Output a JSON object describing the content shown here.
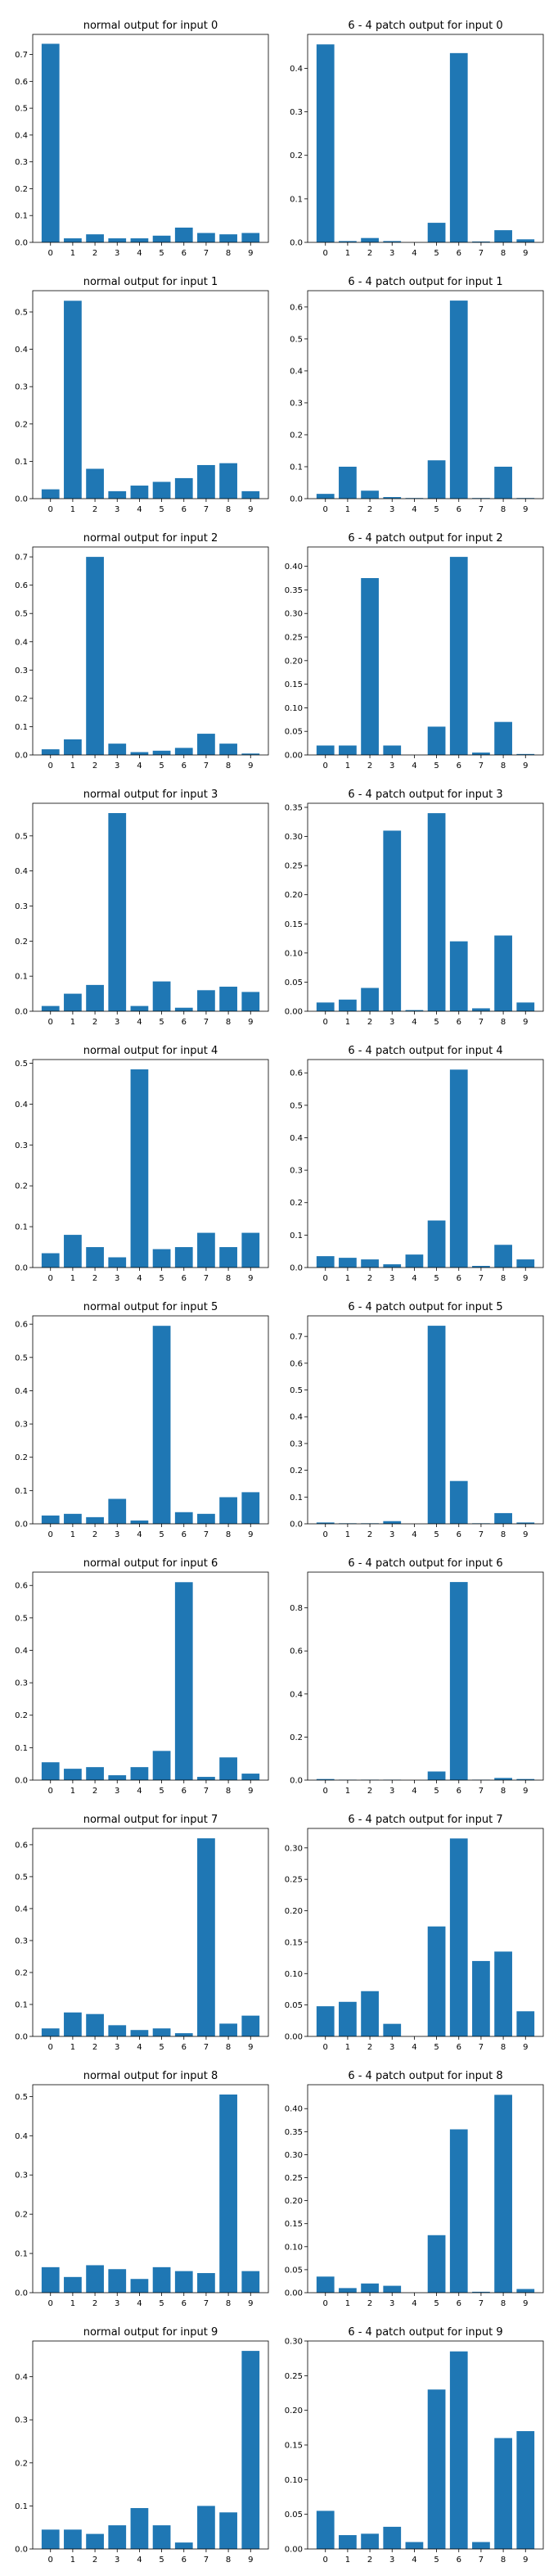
{
  "figure": {
    "bar_color": "#1f77b4",
    "layout": {
      "rows": 10,
      "cols": 2
    }
  },
  "chart_data": [
    {
      "type": "bar",
      "title": "normal output for input 0",
      "categories": [
        "0",
        "1",
        "2",
        "3",
        "4",
        "5",
        "6",
        "7",
        "8",
        "9"
      ],
      "values": [
        0.74,
        0.015,
        0.03,
        0.015,
        0.015,
        0.025,
        0.055,
        0.035,
        0.03,
        0.035
      ],
      "ylim": [
        0,
        0.775
      ],
      "yticks": [
        0.0,
        0.1,
        0.2,
        0.3,
        0.4,
        0.5,
        0.6,
        0.7
      ],
      "ytick_labels": [
        "0.0",
        "0.1",
        "0.2",
        "0.3",
        "0.4",
        "0.5",
        "0.6",
        "0.7"
      ]
    },
    {
      "type": "bar",
      "title": "6 - 4 patch output for input 0",
      "categories": [
        "0",
        "1",
        "2",
        "3",
        "4",
        "5",
        "6",
        "7",
        "8",
        "9"
      ],
      "values": [
        0.455,
        0.003,
        0.01,
        0.003,
        0.0,
        0.045,
        0.435,
        0.002,
        0.028,
        0.007
      ],
      "ylim": [
        0,
        0.478
      ],
      "yticks": [
        0.0,
        0.1,
        0.2,
        0.3,
        0.4
      ],
      "ytick_labels": [
        "0.0",
        "0.1",
        "0.2",
        "0.3",
        "0.4"
      ]
    },
    {
      "type": "bar",
      "title": "normal output for input 1",
      "categories": [
        "0",
        "1",
        "2",
        "3",
        "4",
        "5",
        "6",
        "7",
        "8",
        "9"
      ],
      "values": [
        0.025,
        0.53,
        0.08,
        0.02,
        0.035,
        0.045,
        0.055,
        0.09,
        0.095,
        0.02
      ],
      "ylim": [
        0,
        0.557
      ],
      "yticks": [
        0.0,
        0.1,
        0.2,
        0.3,
        0.4,
        0.5
      ],
      "ytick_labels": [
        "0.0",
        "0.1",
        "0.2",
        "0.3",
        "0.4",
        "0.5"
      ]
    },
    {
      "type": "bar",
      "title": "6 - 4 patch output for input 1",
      "categories": [
        "0",
        "1",
        "2",
        "3",
        "4",
        "5",
        "6",
        "7",
        "8",
        "9"
      ],
      "values": [
        0.015,
        0.1,
        0.025,
        0.005,
        0.002,
        0.12,
        0.62,
        0.002,
        0.1,
        0.002
      ],
      "ylim": [
        0,
        0.651
      ],
      "yticks": [
        0.0,
        0.1,
        0.2,
        0.3,
        0.4,
        0.5,
        0.6
      ],
      "ytick_labels": [
        "0.0",
        "0.1",
        "0.2",
        "0.3",
        "0.4",
        "0.5",
        "0.6"
      ]
    },
    {
      "type": "bar",
      "title": "normal output for input 2",
      "categories": [
        "0",
        "1",
        "2",
        "3",
        "4",
        "5",
        "6",
        "7",
        "8",
        "9"
      ],
      "values": [
        0.02,
        0.055,
        0.7,
        0.04,
        0.01,
        0.015,
        0.025,
        0.075,
        0.04,
        0.005
      ],
      "ylim": [
        0,
        0.735
      ],
      "yticks": [
        0.0,
        0.1,
        0.2,
        0.3,
        0.4,
        0.5,
        0.6,
        0.7
      ],
      "ytick_labels": [
        "0.0",
        "0.1",
        "0.2",
        "0.3",
        "0.4",
        "0.5",
        "0.6",
        "0.7"
      ]
    },
    {
      "type": "bar",
      "title": "6 - 4 patch output for input 2",
      "categories": [
        "0",
        "1",
        "2",
        "3",
        "4",
        "5",
        "6",
        "7",
        "8",
        "9"
      ],
      "values": [
        0.02,
        0.02,
        0.375,
        0.02,
        0.0,
        0.06,
        0.42,
        0.005,
        0.07,
        0.002
      ],
      "ylim": [
        0,
        0.441
      ],
      "yticks": [
        0.0,
        0.05,
        0.1,
        0.15,
        0.2,
        0.25,
        0.3,
        0.35,
        0.4
      ],
      "ytick_labels": [
        "0.00",
        "0.05",
        "0.10",
        "0.15",
        "0.20",
        "0.25",
        "0.30",
        "0.35",
        "0.40"
      ]
    },
    {
      "type": "bar",
      "title": "normal output for input 3",
      "categories": [
        "0",
        "1",
        "2",
        "3",
        "4",
        "5",
        "6",
        "7",
        "8",
        "9"
      ],
      "values": [
        0.015,
        0.05,
        0.075,
        0.565,
        0.015,
        0.085,
        0.01,
        0.06,
        0.07,
        0.055
      ],
      "ylim": [
        0,
        0.593
      ],
      "yticks": [
        0.0,
        0.1,
        0.2,
        0.3,
        0.4,
        0.5
      ],
      "ytick_labels": [
        "0.0",
        "0.1",
        "0.2",
        "0.3",
        "0.4",
        "0.5"
      ]
    },
    {
      "type": "bar",
      "title": "6 - 4 patch output for input 3",
      "categories": [
        "0",
        "1",
        "2",
        "3",
        "4",
        "5",
        "6",
        "7",
        "8",
        "9"
      ],
      "values": [
        0.015,
        0.02,
        0.04,
        0.31,
        0.002,
        0.34,
        0.12,
        0.005,
        0.13,
        0.015
      ],
      "ylim": [
        0,
        0.357
      ],
      "yticks": [
        0.0,
        0.05,
        0.1,
        0.15,
        0.2,
        0.25,
        0.3,
        0.35
      ],
      "ytick_labels": [
        "0.00",
        "0.05",
        "0.10",
        "0.15",
        "0.20",
        "0.25",
        "0.30",
        "0.35"
      ]
    },
    {
      "type": "bar",
      "title": "normal output for input 4",
      "categories": [
        "0",
        "1",
        "2",
        "3",
        "4",
        "5",
        "6",
        "7",
        "8",
        "9"
      ],
      "values": [
        0.035,
        0.08,
        0.05,
        0.025,
        0.485,
        0.045,
        0.05,
        0.085,
        0.05,
        0.085
      ],
      "ylim": [
        0,
        0.509
      ],
      "yticks": [
        0.0,
        0.1,
        0.2,
        0.3,
        0.4,
        0.5
      ],
      "ytick_labels": [
        "0.0",
        "0.1",
        "0.2",
        "0.3",
        "0.4",
        "0.5"
      ]
    },
    {
      "type": "bar",
      "title": "6 - 4 patch output for input 4",
      "categories": [
        "0",
        "1",
        "2",
        "3",
        "4",
        "5",
        "6",
        "7",
        "8",
        "9"
      ],
      "values": [
        0.035,
        0.03,
        0.025,
        0.01,
        0.04,
        0.145,
        0.61,
        0.005,
        0.07,
        0.025
      ],
      "ylim": [
        0,
        0.641
      ],
      "yticks": [
        0.0,
        0.1,
        0.2,
        0.3,
        0.4,
        0.5,
        0.6
      ],
      "ytick_labels": [
        "0.0",
        "0.1",
        "0.2",
        "0.3",
        "0.4",
        "0.5",
        "0.6"
      ]
    },
    {
      "type": "bar",
      "title": "normal output for input 5",
      "categories": [
        "0",
        "1",
        "2",
        "3",
        "4",
        "5",
        "6",
        "7",
        "8",
        "9"
      ],
      "values": [
        0.025,
        0.03,
        0.02,
        0.075,
        0.01,
        0.595,
        0.035,
        0.03,
        0.08,
        0.095
      ],
      "ylim": [
        0,
        0.625
      ],
      "yticks": [
        0.0,
        0.1,
        0.2,
        0.3,
        0.4,
        0.5,
        0.6
      ],
      "ytick_labels": [
        "0.0",
        "0.1",
        "0.2",
        "0.3",
        "0.4",
        "0.5",
        "0.6"
      ]
    },
    {
      "type": "bar",
      "title": "6 - 4 patch output for input 5",
      "categories": [
        "0",
        "1",
        "2",
        "3",
        "4",
        "5",
        "6",
        "7",
        "8",
        "9"
      ],
      "values": [
        0.005,
        0.002,
        0.002,
        0.01,
        0.0,
        0.74,
        0.16,
        0.002,
        0.04,
        0.005
      ],
      "ylim": [
        0,
        0.777
      ],
      "yticks": [
        0.0,
        0.1,
        0.2,
        0.3,
        0.4,
        0.5,
        0.6,
        0.7
      ],
      "ytick_labels": [
        "0.0",
        "0.1",
        "0.2",
        "0.3",
        "0.4",
        "0.5",
        "0.6",
        "0.7"
      ]
    },
    {
      "type": "bar",
      "title": "normal output for input 6",
      "categories": [
        "0",
        "1",
        "2",
        "3",
        "4",
        "5",
        "6",
        "7",
        "8",
        "9"
      ],
      "values": [
        0.055,
        0.035,
        0.04,
        0.015,
        0.04,
        0.09,
        0.61,
        0.01,
        0.07,
        0.02
      ],
      "ylim": [
        0,
        0.641
      ],
      "yticks": [
        0.0,
        0.1,
        0.2,
        0.3,
        0.4,
        0.5,
        0.6
      ],
      "ytick_labels": [
        "0.0",
        "0.1",
        "0.2",
        "0.3",
        "0.4",
        "0.5",
        "0.6"
      ]
    },
    {
      "type": "bar",
      "title": "6 - 4 patch output for input 6",
      "categories": [
        "0",
        "1",
        "2",
        "3",
        "4",
        "5",
        "6",
        "7",
        "8",
        "9"
      ],
      "values": [
        0.005,
        0.002,
        0.002,
        0.002,
        0.0,
        0.04,
        0.92,
        0.002,
        0.01,
        0.005
      ],
      "ylim": [
        0,
        0.966
      ],
      "yticks": [
        0.0,
        0.2,
        0.4,
        0.6,
        0.8
      ],
      "ytick_labels": [
        "0.0",
        "0.2",
        "0.4",
        "0.6",
        "0.8"
      ]
    },
    {
      "type": "bar",
      "title": "normal output for input 7",
      "categories": [
        "0",
        "1",
        "2",
        "3",
        "4",
        "5",
        "6",
        "7",
        "8",
        "9"
      ],
      "values": [
        0.025,
        0.075,
        0.07,
        0.035,
        0.02,
        0.025,
        0.01,
        0.62,
        0.04,
        0.065
      ],
      "ylim": [
        0,
        0.651
      ],
      "yticks": [
        0.0,
        0.1,
        0.2,
        0.3,
        0.4,
        0.5,
        0.6
      ],
      "ytick_labels": [
        "0.0",
        "0.1",
        "0.2",
        "0.3",
        "0.4",
        "0.5",
        "0.6"
      ]
    },
    {
      "type": "bar",
      "title": "6 - 4 patch output for input 7",
      "categories": [
        "0",
        "1",
        "2",
        "3",
        "4",
        "5",
        "6",
        "7",
        "8",
        "9"
      ],
      "values": [
        0.048,
        0.055,
        0.072,
        0.02,
        0.0,
        0.175,
        0.315,
        0.12,
        0.135,
        0.04
      ],
      "ylim": [
        0,
        0.331
      ],
      "yticks": [
        0.0,
        0.05,
        0.1,
        0.15,
        0.2,
        0.25,
        0.3
      ],
      "ytick_labels": [
        "0.00",
        "0.05",
        "0.10",
        "0.15",
        "0.20",
        "0.25",
        "0.30"
      ]
    },
    {
      "type": "bar",
      "title": "normal output for input 8",
      "categories": [
        "0",
        "1",
        "2",
        "3",
        "4",
        "5",
        "6",
        "7",
        "8",
        "9"
      ],
      "values": [
        0.065,
        0.04,
        0.07,
        0.06,
        0.035,
        0.065,
        0.055,
        0.05,
        0.505,
        0.055
      ],
      "ylim": [
        0,
        0.53
      ],
      "yticks": [
        0.0,
        0.1,
        0.2,
        0.3,
        0.4,
        0.5
      ],
      "ytick_labels": [
        "0.0",
        "0.1",
        "0.2",
        "0.3",
        "0.4",
        "0.5"
      ]
    },
    {
      "type": "bar",
      "title": "6 - 4 patch output for input 8",
      "categories": [
        "0",
        "1",
        "2",
        "3",
        "4",
        "5",
        "6",
        "7",
        "8",
        "9"
      ],
      "values": [
        0.035,
        0.01,
        0.02,
        0.015,
        0.0,
        0.125,
        0.355,
        0.002,
        0.43,
        0.008
      ],
      "ylim": [
        0,
        0.452
      ],
      "yticks": [
        0.0,
        0.05,
        0.1,
        0.15,
        0.2,
        0.25,
        0.3,
        0.35,
        0.4
      ],
      "ytick_labels": [
        "0.00",
        "0.05",
        "0.10",
        "0.15",
        "0.20",
        "0.25",
        "0.30",
        "0.35",
        "0.40"
      ]
    },
    {
      "type": "bar",
      "title": "normal output for input 9",
      "categories": [
        "0",
        "1",
        "2",
        "3",
        "4",
        "5",
        "6",
        "7",
        "8",
        "9"
      ],
      "values": [
        0.045,
        0.045,
        0.035,
        0.055,
        0.095,
        0.055,
        0.015,
        0.1,
        0.085,
        0.46
      ],
      "ylim": [
        0,
        0.483
      ],
      "yticks": [
        0.0,
        0.1,
        0.2,
        0.3,
        0.4
      ],
      "ytick_labels": [
        "0.0",
        "0.1",
        "0.2",
        "0.3",
        "0.4"
      ]
    },
    {
      "type": "bar",
      "title": "6 - 4 patch output for input 9",
      "categories": [
        "0",
        "1",
        "2",
        "3",
        "4",
        "5",
        "6",
        "7",
        "8",
        "9"
      ],
      "values": [
        0.055,
        0.02,
        0.022,
        0.032,
        0.01,
        0.23,
        0.285,
        0.01,
        0.16,
        0.17
      ],
      "ylim": [
        0,
        0.3
      ],
      "yticks": [
        0.0,
        0.05,
        0.1,
        0.15,
        0.2,
        0.25,
        0.3
      ],
      "ytick_labels": [
        "0.00",
        "0.05",
        "0.10",
        "0.15",
        "0.20",
        "0.25",
        "0.30"
      ]
    }
  ]
}
